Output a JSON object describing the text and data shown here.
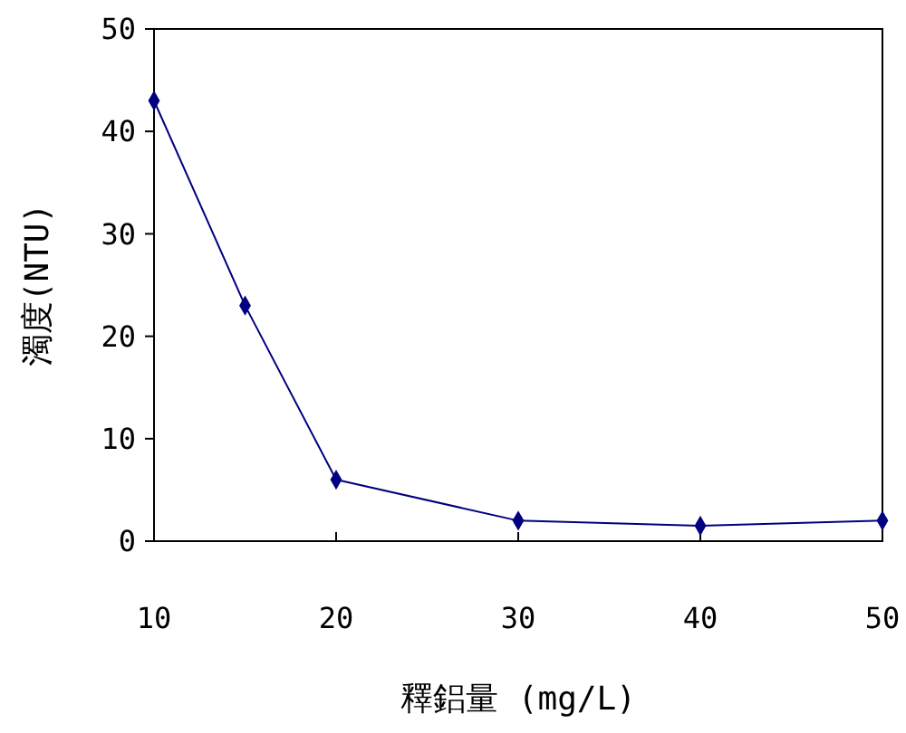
{
  "chart_data": {
    "type": "line",
    "xlabel": "釋鋁量 (mg/L)",
    "ylabel": "濁度(NTU)",
    "x": [
      10,
      15,
      20,
      30,
      40,
      50
    ],
    "series": [
      {
        "color": "#000080",
        "values": [
          43,
          23,
          6,
          2,
          1.5,
          2
        ]
      }
    ],
    "xlim": [
      10,
      50
    ],
    "xticks": [
      10,
      20,
      30,
      40,
      50
    ],
    "ylim": [
      0,
      50
    ],
    "yticks": [
      0,
      10,
      20,
      30,
      40,
      50
    ],
    "marker": "diamond",
    "line_style": "solid"
  }
}
